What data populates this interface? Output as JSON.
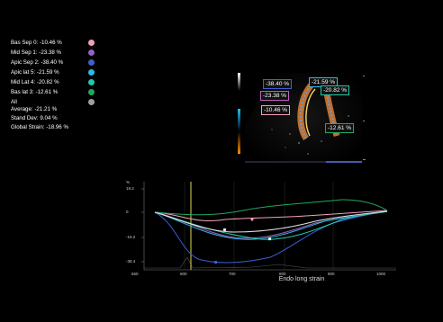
{
  "segments": [
    {
      "label": "Bas Sep 0: -10.46 %",
      "color": "#f4a0b8"
    },
    {
      "label": "Mid Sep 1: -23.38 %",
      "color": "#9a60c0"
    },
    {
      "label": "Apic Sep 2: -38.40 %",
      "color": "#4060d0"
    },
    {
      "label": "Apic lat 5: -21.59 %",
      "color": "#30b8e8"
    },
    {
      "label": "Mid Lat 4: -20.82 %",
      "color": "#20c8a8"
    },
    {
      "label": "Bas lat 3: -12.61 %",
      "color": "#20a860"
    },
    {
      "label": "All",
      "color": "#a0a0a0"
    }
  ],
  "stats": {
    "average": "Average: -21.21 %",
    "stdev": "Stand Dev: 9.04 %",
    "global": "Global Strain: -18.96 %"
  },
  "echo_labels": {
    "apic_sep": "-38.40 %",
    "apic_lat": "-21.59 %",
    "mid_lat": "-20.82 %",
    "mid_sep": "-23.38 %",
    "bas_sep": "-10.46 %",
    "bas_lat": "-12.61 %"
  },
  "graph": {
    "title": "Endo long strain",
    "y_unit": "%",
    "y_ticks": [
      "19.2",
      "0",
      "-19.2",
      "-38.4"
    ],
    "x_ticks": [
      "550",
      "600",
      "700",
      "800",
      "900",
      "1000"
    ]
  }
}
